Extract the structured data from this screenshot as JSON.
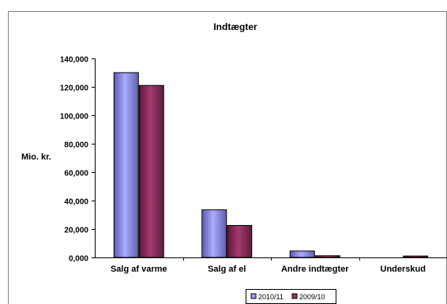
{
  "chart_data": {
    "type": "bar",
    "title": "Indtægter",
    "ylabel": "Mio. kr.",
    "xlabel": "",
    "categories": [
      "Salg af varme",
      "Salg af el",
      "Andre indtægter",
      "Underskud"
    ],
    "series": [
      {
        "name": "2010/11",
        "values": [
          130000,
          33500,
          4500,
          0
        ],
        "color": "#9999FF"
      },
      {
        "name": "2009/10",
        "values": [
          121000,
          22500,
          1200,
          1000
        ],
        "color": "#993366"
      }
    ],
    "ylim": [
      0,
      140000
    ],
    "yticks": [
      0,
      20000,
      40000,
      60000,
      80000,
      100000,
      120000,
      140000
    ],
    "ytick_labels": [
      "0,000",
      "20,000",
      "40,000",
      "60,000",
      "80,000",
      "100,000",
      "120,000",
      "140,000"
    ],
    "grid": false,
    "legend": "bottom"
  }
}
